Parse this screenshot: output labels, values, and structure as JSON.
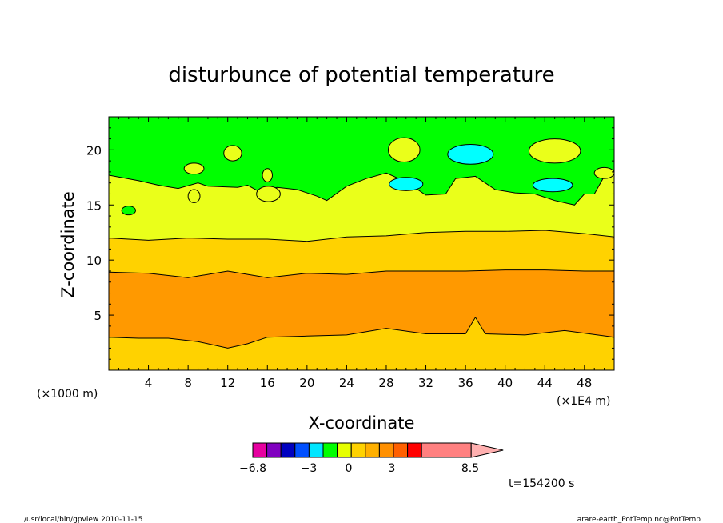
{
  "chart_data": {
    "type": "contour",
    "title": "disturbunce of potential temperature",
    "xlabel": "X-coordinate",
    "ylabel": "Z-coordinate",
    "x_unit_left": "(×1000 m)",
    "x_unit_right": "(×1E4 m)",
    "xlim": [
      0,
      51
    ],
    "ylim": [
      0,
      23
    ],
    "x_ticks": [
      4,
      8,
      12,
      16,
      20,
      24,
      28,
      32,
      36,
      40,
      44,
      48
    ],
    "y_ticks": [
      5,
      10,
      15,
      20
    ],
    "levels": [
      {
        "z": 0.4,
        "color": "#ffd200"
      },
      {
        "z": 3.0,
        "color": "#ff9900"
      },
      {
        "z": 8.8,
        "color": "#ffd200"
      },
      {
        "z": 12.0,
        "color": "#eaff1a"
      },
      {
        "z": 15.8,
        "color": "#00ff00"
      }
    ],
    "contours": {
      "c_low": [
        [
          0,
          3.0
        ],
        [
          3,
          2.9
        ],
        [
          6,
          2.9
        ],
        [
          9,
          2.6
        ],
        [
          12,
          2.0
        ],
        [
          14,
          2.4
        ],
        [
          16,
          3.0
        ],
        [
          20,
          3.1
        ],
        [
          24,
          3.2
        ],
        [
          28,
          3.8
        ],
        [
          32,
          3.3
        ],
        [
          36,
          3.3
        ],
        [
          37,
          4.8
        ],
        [
          38,
          3.3
        ],
        [
          42,
          3.2
        ],
        [
          46,
          3.6
        ],
        [
          51,
          3.0
        ]
      ],
      "c_mid": [
        [
          0,
          8.9
        ],
        [
          4,
          8.8
        ],
        [
          8,
          8.4
        ],
        [
          12,
          9.0
        ],
        [
          16,
          8.4
        ],
        [
          20,
          8.8
        ],
        [
          24,
          8.7
        ],
        [
          28,
          9.0
        ],
        [
          32,
          9.0
        ],
        [
          36,
          9.0
        ],
        [
          40,
          9.1
        ],
        [
          44,
          9.1
        ],
        [
          48,
          9.0
        ],
        [
          51,
          9.0
        ]
      ],
      "c_upper": [
        [
          0,
          12.0
        ],
        [
          4,
          11.8
        ],
        [
          8,
          12.0
        ],
        [
          12,
          11.9
        ],
        [
          16,
          11.9
        ],
        [
          20,
          11.7
        ],
        [
          24,
          12.1
        ],
        [
          28,
          12.2
        ],
        [
          32,
          12.5
        ],
        [
          36,
          12.6
        ],
        [
          40,
          12.6
        ],
        [
          44,
          12.7
        ],
        [
          48,
          12.4
        ],
        [
          51,
          12.1
        ]
      ],
      "c_top": [
        [
          0,
          17.7
        ],
        [
          3,
          17.2
        ],
        [
          5,
          16.8
        ],
        [
          7,
          16.5
        ],
        [
          9,
          17.0
        ],
        [
          10,
          16.7
        ],
        [
          13,
          16.6
        ],
        [
          14,
          16.8
        ],
        [
          15,
          16.3
        ],
        [
          17,
          16.6
        ],
        [
          19,
          16.4
        ],
        [
          21,
          15.8
        ],
        [
          22,
          15.4
        ],
        [
          24,
          16.7
        ],
        [
          26,
          17.4
        ],
        [
          28,
          17.9
        ],
        [
          30,
          17.1
        ],
        [
          32,
          15.9
        ],
        [
          34,
          16.0
        ],
        [
          35,
          17.4
        ],
        [
          37,
          17.6
        ],
        [
          39,
          16.4
        ],
        [
          41,
          16.1
        ],
        [
          43,
          16.0
        ],
        [
          45,
          15.4
        ],
        [
          47,
          15.0
        ],
        [
          48,
          16.0
        ],
        [
          49,
          16.0
        ],
        [
          50,
          17.6
        ],
        [
          51,
          17.7
        ]
      ]
    },
    "islands": [
      {
        "cx": 2.0,
        "cy": 14.5,
        "rx": 0.7,
        "ry": 0.4,
        "color": "#00ff00"
      },
      {
        "cx": 8.6,
        "cy": 18.3,
        "rx": 1.0,
        "ry": 0.5,
        "color": "#eaff1a"
      },
      {
        "cx": 12.5,
        "cy": 19.7,
        "rx": 0.9,
        "ry": 0.7,
        "color": "#eaff1a"
      },
      {
        "cx": 8.6,
        "cy": 15.8,
        "rx": 0.6,
        "ry": 0.6,
        "color": "#eaff1a"
      },
      {
        "cx": 16.0,
        "cy": 17.7,
        "rx": 0.5,
        "ry": 0.6,
        "color": "#eaff1a"
      },
      {
        "cx": 16.1,
        "cy": 16.0,
        "rx": 1.2,
        "ry": 0.7,
        "color": "#eaff1a"
      },
      {
        "cx": 29.8,
        "cy": 20.0,
        "rx": 1.6,
        "ry": 1.1,
        "color": "#eaff1a"
      },
      {
        "cx": 30.0,
        "cy": 16.9,
        "rx": 1.7,
        "ry": 0.6,
        "color": "#00ffff"
      },
      {
        "cx": 36.5,
        "cy": 19.6,
        "rx": 2.3,
        "ry": 0.9,
        "color": "#00ffff"
      },
      {
        "cx": 45.0,
        "cy": 19.9,
        "rx": 2.6,
        "ry": 1.1,
        "color": "#eaff1a"
      },
      {
        "cx": 44.8,
        "cy": 16.8,
        "rx": 2.0,
        "ry": 0.6,
        "color": "#00ffff"
      },
      {
        "cx": 50.0,
        "cy": 17.9,
        "rx": 1.0,
        "ry": 0.5,
        "color": "#eaff1a"
      }
    ],
    "colorbar": {
      "colors": [
        "#e600a0",
        "#8000c0",
        "#0000c0",
        "#0050ff",
        "#00e6ff",
        "#00ff00",
        "#e6ff00",
        "#ffd200",
        "#ffb000",
        "#ff9000",
        "#ff6000",
        "#ff0000",
        "#ff8080",
        "#ffb0b0"
      ],
      "labels": [
        "−6.8",
        "−3",
        "0",
        "3",
        "8.5"
      ]
    },
    "time_label": "t=154200 s"
  },
  "footer": {
    "left": "/usr/local/bin/gpview   2010-11-15",
    "right": "arare-earth_PotTemp.nc@PotTemp"
  }
}
